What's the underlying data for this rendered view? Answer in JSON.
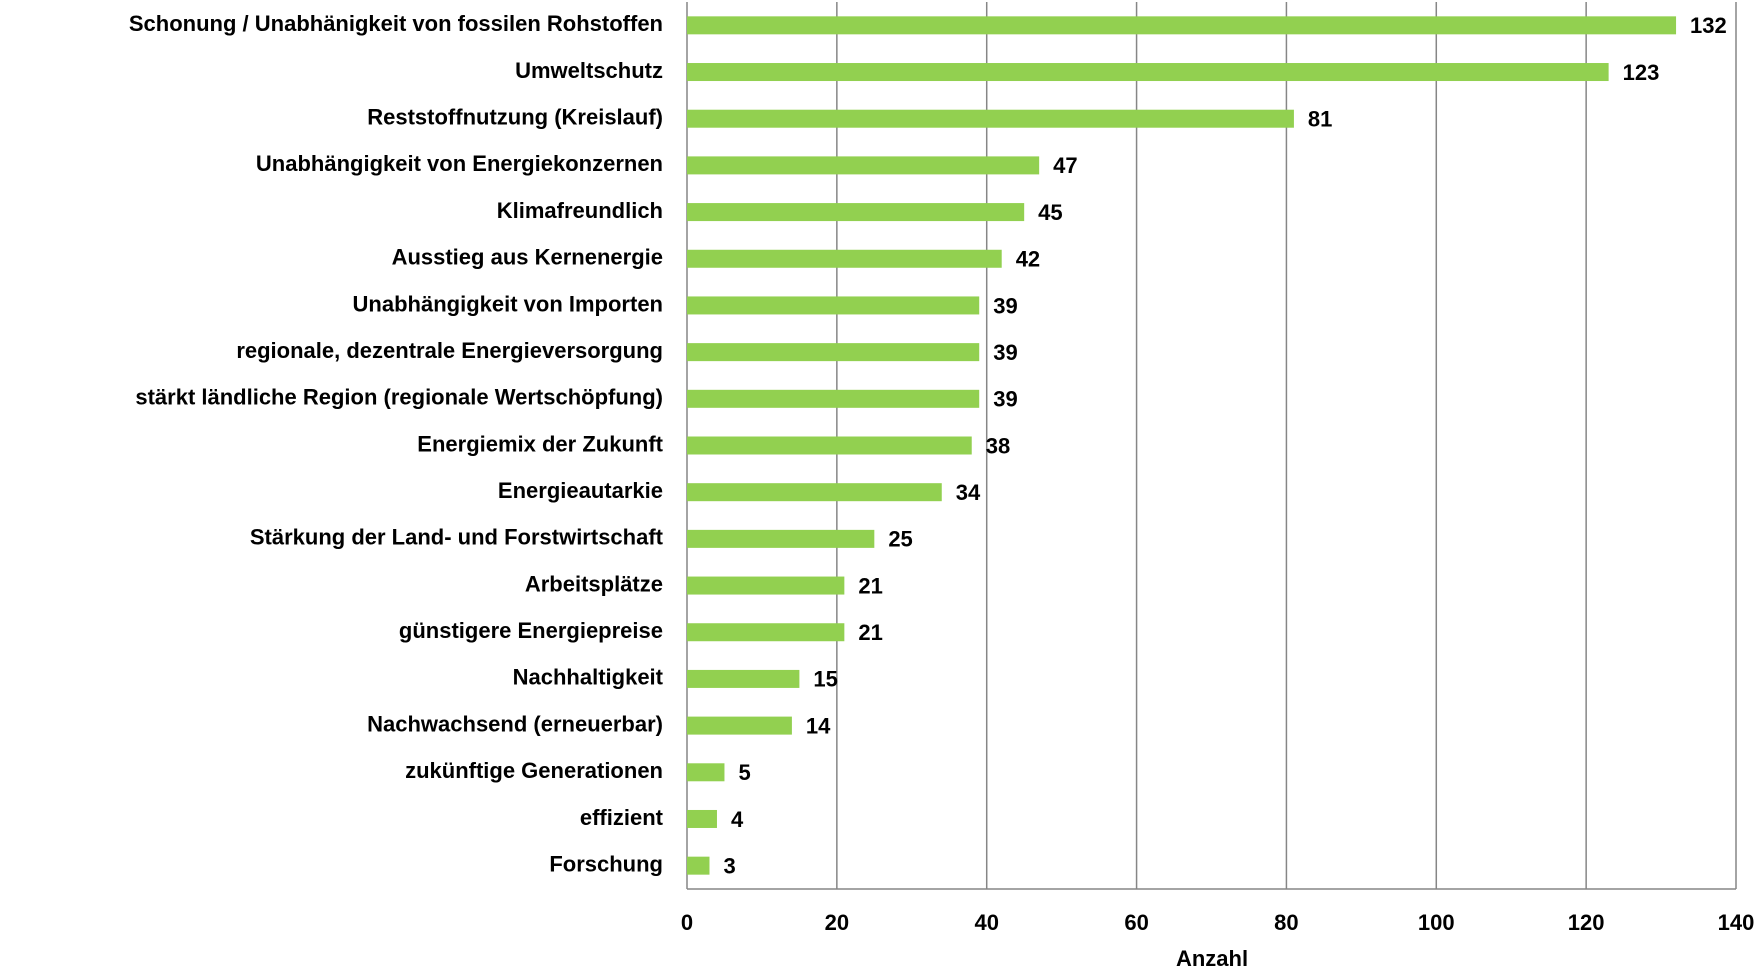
{
  "chart_data": {
    "type": "bar",
    "orientation": "horizontal",
    "categories": [
      "Schonung / Unabhänigkeit von fossilen Rohstoffen",
      "Umweltschutz",
      "Reststoffnutzung (Kreislauf)",
      "Unabhängigkeit von Energiekonzernen",
      "Klimafreundlich",
      "Ausstieg aus Kernenergie",
      "Unabhängigkeit von Importen",
      "regionale, dezentrale Energieversorgung",
      "stärkt ländliche Region (regionale Wertschöpfung)",
      "Energiemix der Zukunft",
      "Energieautarkie",
      "Stärkung der Land- und Forstwirtschaft",
      "Arbeitsplätze",
      "günstigere Energiepreise",
      "Nachhaltigkeit",
      "Nachwachsend (erneuerbar)",
      "zukünftige Generationen",
      "effizient",
      "Forschung"
    ],
    "values": [
      132,
      123,
      81,
      47,
      45,
      42,
      39,
      39,
      39,
      38,
      34,
      25,
      21,
      21,
      15,
      14,
      5,
      4,
      3
    ],
    "color": "#92d050",
    "xlabel": "Anzahl",
    "xlim": [
      0,
      140
    ],
    "xticks": [
      0,
      20,
      40,
      60,
      80,
      100,
      120,
      140
    ],
    "grid": true
  }
}
